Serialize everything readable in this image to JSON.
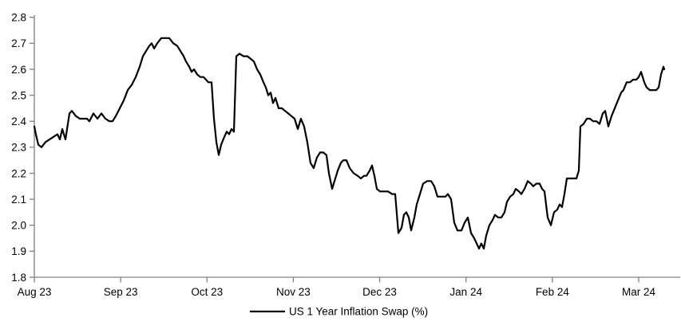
{
  "page": {
    "background_color": "#ffffff"
  },
  "chart_data": {
    "type": "line",
    "title": "",
    "xlabel": "",
    "ylabel": "",
    "grid": false,
    "legend_position": "bottom-center",
    "axis_color": "#808080",
    "label_color": "#000000",
    "ylim": [
      1.8,
      2.8
    ],
    "xlim_months": [
      0,
      7.49
    ],
    "x_unit": "months since Aug 2023",
    "y_ticks": {
      "values": [
        2.8,
        2.7,
        2.6,
        2.5,
        2.4,
        2.3,
        2.2,
        2.1,
        2.0,
        1.9,
        1.8
      ],
      "labels": [
        "2.8",
        "2.7",
        "2.6",
        "2.5",
        "2.4",
        "2.3",
        "2.2",
        "2.1",
        "2.0",
        "1.9",
        "1.8"
      ]
    },
    "x_ticks": {
      "positions_months": [
        0,
        1,
        2,
        3,
        4,
        5,
        6,
        7
      ],
      "labels": [
        "Aug 23",
        "Sep 23",
        "Oct 23",
        "Nov 23",
        "Dec 23",
        "Jan 24",
        "Feb 24",
        "Mar 24"
      ]
    },
    "series": [
      {
        "name": "US 1 Year Inflation Swap (%)",
        "color": "#000000",
        "line_width": 2.2,
        "points": [
          [
            0.0,
            2.38
          ],
          [
            0.018,
            2.35
          ],
          [
            0.046,
            2.31
          ],
          [
            0.083,
            2.3
          ],
          [
            0.129,
            2.32
          ],
          [
            0.176,
            2.33
          ],
          [
            0.222,
            2.34
          ],
          [
            0.268,
            2.35
          ],
          [
            0.296,
            2.33
          ],
          [
            0.324,
            2.37
          ],
          [
            0.361,
            2.33
          ],
          [
            0.407,
            2.43
          ],
          [
            0.435,
            2.44
          ],
          [
            0.481,
            2.42
          ],
          [
            0.527,
            2.41
          ],
          [
            0.573,
            2.41
          ],
          [
            0.61,
            2.41
          ],
          [
            0.638,
            2.4
          ],
          [
            0.684,
            2.43
          ],
          [
            0.731,
            2.41
          ],
          [
            0.777,
            2.43
          ],
          [
            0.823,
            2.41
          ],
          [
            0.869,
            2.4
          ],
          [
            0.906,
            2.4
          ],
          [
            0.943,
            2.42
          ],
          [
            0.989,
            2.45
          ],
          [
            1.036,
            2.48
          ],
          [
            1.082,
            2.52
          ],
          [
            1.128,
            2.54
          ],
          [
            1.174,
            2.57
          ],
          [
            1.221,
            2.61
          ],
          [
            1.258,
            2.65
          ],
          [
            1.295,
            2.67
          ],
          [
            1.332,
            2.69
          ],
          [
            1.359,
            2.7
          ],
          [
            1.387,
            2.68
          ],
          [
            1.424,
            2.7
          ],
          [
            1.47,
            2.72
          ],
          [
            1.516,
            2.72
          ],
          [
            1.563,
            2.72
          ],
          [
            1.609,
            2.7
          ],
          [
            1.655,
            2.69
          ],
          [
            1.692,
            2.67
          ],
          [
            1.729,
            2.65
          ],
          [
            1.757,
            2.63
          ],
          [
            1.794,
            2.61
          ],
          [
            1.822,
            2.59
          ],
          [
            1.849,
            2.6
          ],
          [
            1.886,
            2.58
          ],
          [
            1.923,
            2.57
          ],
          [
            1.96,
            2.57
          ],
          [
            1.988,
            2.56
          ],
          [
            2.016,
            2.55
          ],
          [
            2.053,
            2.55
          ],
          [
            2.081,
            2.41
          ],
          [
            2.108,
            2.32
          ],
          [
            2.136,
            2.27
          ],
          [
            2.164,
            2.31
          ],
          [
            2.201,
            2.34
          ],
          [
            2.229,
            2.36
          ],
          [
            2.256,
            2.35
          ],
          [
            2.284,
            2.37
          ],
          [
            2.312,
            2.36
          ],
          [
            2.34,
            2.65
          ],
          [
            2.377,
            2.66
          ],
          [
            2.423,
            2.65
          ],
          [
            2.469,
            2.65
          ],
          [
            2.506,
            2.64
          ],
          [
            2.543,
            2.63
          ],
          [
            2.58,
            2.6
          ],
          [
            2.617,
            2.58
          ],
          [
            2.654,
            2.55
          ],
          [
            2.682,
            2.53
          ],
          [
            2.709,
            2.5
          ],
          [
            2.737,
            2.51
          ],
          [
            2.765,
            2.47
          ],
          [
            2.793,
            2.49
          ],
          [
            2.83,
            2.45
          ],
          [
            2.867,
            2.45
          ],
          [
            2.904,
            2.44
          ],
          [
            2.941,
            2.43
          ],
          [
            2.978,
            2.42
          ],
          [
            3.015,
            2.41
          ],
          [
            3.052,
            2.37
          ],
          [
            3.088,
            2.41
          ],
          [
            3.125,
            2.38
          ],
          [
            3.162,
            2.32
          ],
          [
            3.199,
            2.24
          ],
          [
            3.236,
            2.22
          ],
          [
            3.273,
            2.26
          ],
          [
            3.31,
            2.28
          ],
          [
            3.347,
            2.28
          ],
          [
            3.384,
            2.27
          ],
          [
            3.412,
            2.2
          ],
          [
            3.449,
            2.14
          ],
          [
            3.477,
            2.17
          ],
          [
            3.514,
            2.21
          ],
          [
            3.551,
            2.24
          ],
          [
            3.579,
            2.25
          ],
          [
            3.616,
            2.25
          ],
          [
            3.653,
            2.22
          ],
          [
            3.699,
            2.2
          ],
          [
            3.745,
            2.19
          ],
          [
            3.782,
            2.18
          ],
          [
            3.819,
            2.19
          ],
          [
            3.847,
            2.19
          ],
          [
            3.884,
            2.21
          ],
          [
            3.912,
            2.23
          ],
          [
            3.939,
            2.19
          ],
          [
            3.967,
            2.14
          ],
          [
            4.004,
            2.13
          ],
          [
            4.05,
            2.13
          ],
          [
            4.097,
            2.13
          ],
          [
            4.143,
            2.12
          ],
          [
            4.18,
            2.12
          ],
          [
            4.217,
            1.97
          ],
          [
            4.254,
            1.99
          ],
          [
            4.281,
            2.04
          ],
          [
            4.309,
            2.05
          ],
          [
            4.337,
            2.03
          ],
          [
            4.365,
            1.98
          ],
          [
            4.402,
            2.03
          ],
          [
            4.429,
            2.08
          ],
          [
            4.466,
            2.12
          ],
          [
            4.503,
            2.16
          ],
          [
            4.55,
            2.17
          ],
          [
            4.596,
            2.17
          ],
          [
            4.633,
            2.15
          ],
          [
            4.67,
            2.11
          ],
          [
            4.716,
            2.11
          ],
          [
            4.762,
            2.11
          ],
          [
            4.79,
            2.12
          ],
          [
            4.827,
            2.1
          ],
          [
            4.864,
            2.01
          ],
          [
            4.901,
            1.98
          ],
          [
            4.947,
            1.98
          ],
          [
            4.984,
            2.01
          ],
          [
            5.021,
            2.03
          ],
          [
            5.058,
            1.97
          ],
          [
            5.095,
            1.95
          ],
          [
            5.123,
            1.93
          ],
          [
            5.151,
            1.91
          ],
          [
            5.178,
            1.93
          ],
          [
            5.206,
            1.91
          ],
          [
            5.234,
            1.96
          ],
          [
            5.271,
            2.0
          ],
          [
            5.308,
            2.02
          ],
          [
            5.336,
            2.04
          ],
          [
            5.373,
            2.03
          ],
          [
            5.41,
            2.03
          ],
          [
            5.447,
            2.05
          ],
          [
            5.474,
            2.09
          ],
          [
            5.511,
            2.11
          ],
          [
            5.548,
            2.12
          ],
          [
            5.576,
            2.14
          ],
          [
            5.613,
            2.13
          ],
          [
            5.641,
            2.12
          ],
          [
            5.678,
            2.14
          ],
          [
            5.715,
            2.17
          ],
          [
            5.752,
            2.16
          ],
          [
            5.779,
            2.15
          ],
          [
            5.816,
            2.16
          ],
          [
            5.853,
            2.16
          ],
          [
            5.881,
            2.14
          ],
          [
            5.909,
            2.13
          ],
          [
            5.946,
            2.03
          ],
          [
            5.983,
            2.0
          ],
          [
            6.02,
            2.05
          ],
          [
            6.057,
            2.06
          ],
          [
            6.085,
            2.08
          ],
          [
            6.112,
            2.07
          ],
          [
            6.14,
            2.12
          ],
          [
            6.168,
            2.18
          ],
          [
            6.205,
            2.18
          ],
          [
            6.242,
            2.18
          ],
          [
            6.279,
            2.18
          ],
          [
            6.307,
            2.21
          ],
          [
            6.325,
            2.38
          ],
          [
            6.362,
            2.39
          ],
          [
            6.399,
            2.41
          ],
          [
            6.436,
            2.41
          ],
          [
            6.473,
            2.4
          ],
          [
            6.51,
            2.4
          ],
          [
            6.547,
            2.39
          ],
          [
            6.584,
            2.43
          ],
          [
            6.612,
            2.44
          ],
          [
            6.649,
            2.38
          ],
          [
            6.686,
            2.42
          ],
          [
            6.723,
            2.45
          ],
          [
            6.76,
            2.48
          ],
          [
            6.797,
            2.51
          ],
          [
            6.824,
            2.52
          ],
          [
            6.861,
            2.55
          ],
          [
            6.898,
            2.55
          ],
          [
            6.935,
            2.56
          ],
          [
            6.972,
            2.56
          ],
          [
            7.0,
            2.57
          ],
          [
            7.028,
            2.59
          ],
          [
            7.065,
            2.55
          ],
          [
            7.093,
            2.53
          ],
          [
            7.13,
            2.52
          ],
          [
            7.167,
            2.52
          ],
          [
            7.204,
            2.52
          ],
          [
            7.231,
            2.53
          ],
          [
            7.259,
            2.58
          ],
          [
            7.287,
            2.61
          ],
          [
            7.296,
            2.6
          ]
        ]
      }
    ]
  }
}
